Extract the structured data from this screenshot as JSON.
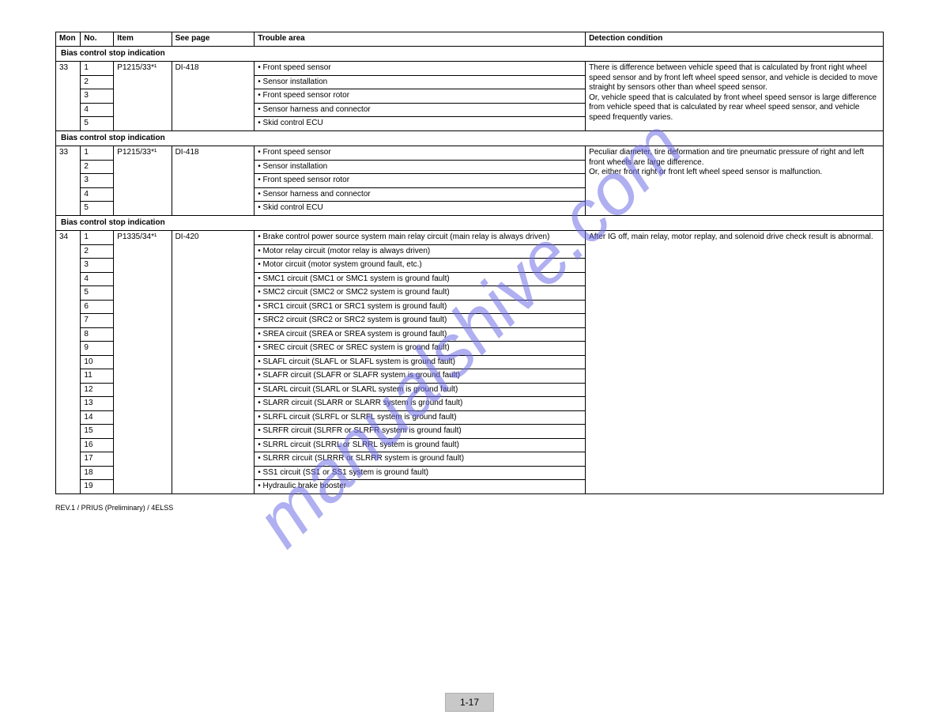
{
  "watermark": "manualshive.com",
  "page_number": "1-17",
  "footer_note": "REV.1 / PRIUS (Preliminary) / 4ELSS",
  "columns": [
    "Mon",
    "No.",
    "Item",
    "See page",
    "Trouble area",
    "Detection condition"
  ],
  "section1": {
    "title": "Bias control stop indication",
    "code": "33",
    "no": [
      "1",
      "2",
      "3",
      "4",
      "5"
    ],
    "item": "P1215/33*¹",
    "page": "DI-418",
    "areas": [
      "• Front speed sensor",
      "• Sensor installation",
      "• Front speed sensor rotor",
      "• Sensor harness and connector",
      "• Skid control ECU"
    ],
    "detection": "There is difference between vehicle speed that is calculated by front right wheel speed sensor and by front left wheel speed sensor, and vehicle is decided to move straight by sensors other than wheel speed sensor.\nOr, vehicle speed that is calculated by front wheel speed sensor is large difference from vehicle speed that is calculated by rear wheel speed sensor, and vehicle speed frequently varies."
  },
  "section2": {
    "title": "Bias control stop indication",
    "code": "33",
    "no": [
      "1",
      "2",
      "3",
      "4",
      "5"
    ],
    "item": "P1215/33*¹",
    "page": "DI-418",
    "areas": [
      "• Front speed sensor",
      "• Sensor installation",
      "• Front speed sensor rotor",
      "• Sensor harness and connector",
      "• Skid control ECU"
    ],
    "detection": "Peculiar diameter, tire deformation and tire pneumatic pressure of right and left front wheels are large difference.\nOr, either front right or front left wheel speed sensor is malfunction."
  },
  "section3": {
    "title": "Bias control stop indication",
    "code": "34",
    "no": [
      "1",
      "2",
      "3",
      "4",
      "5",
      "6",
      "7",
      "8",
      "9",
      "10",
      "11",
      "12",
      "13",
      "14",
      "15",
      "16",
      "17",
      "18",
      "19"
    ],
    "item": "P1335/34*¹",
    "page": "DI-420",
    "areas": [
      "• Brake control power source system main relay circuit (main relay is always driven)",
      "• Motor relay circuit (motor relay is always driven)",
      "• Motor circuit (motor system ground fault, etc.)",
      "• SMC1 circuit (SMC1 or SMC1 system is ground fault)",
      "• SMC2 circuit (SMC2 or SMC2 system is ground fault)",
      "• SRC1 circuit (SRC1 or SRC1 system is ground fault)",
      "• SRC2 circuit (SRC2 or SRC2 system is ground fault)",
      "• SREA circuit (SREA or SREA system is ground fault)",
      "• SREC circuit (SREC or SREC system is ground fault)",
      "• SLAFL circuit (SLAFL or SLAFL system is ground fault)",
      "• SLAFR circuit (SLAFR or SLAFR system is ground fault)",
      "• SLARL circuit (SLARL or SLARL system is ground fault)",
      "• SLARR circuit (SLARR or SLARR system is ground fault)",
      "• SLRFL circuit (SLRFL or SLRFL system is ground fault)",
      "• SLRFR circuit (SLRFR or SLRFR system is ground fault)",
      "• SLRRL circuit (SLRRL or SLRRL system is ground fault)",
      "• SLRRR circuit (SLRRR or SLRRR system is ground fault)",
      "• SS1 circuit (SS1 or SS1 system is ground fault)",
      "• Hydraulic brake booster"
    ],
    "detection": "After IG off, main relay, motor replay, and solenoid drive check result is abnormal."
  }
}
